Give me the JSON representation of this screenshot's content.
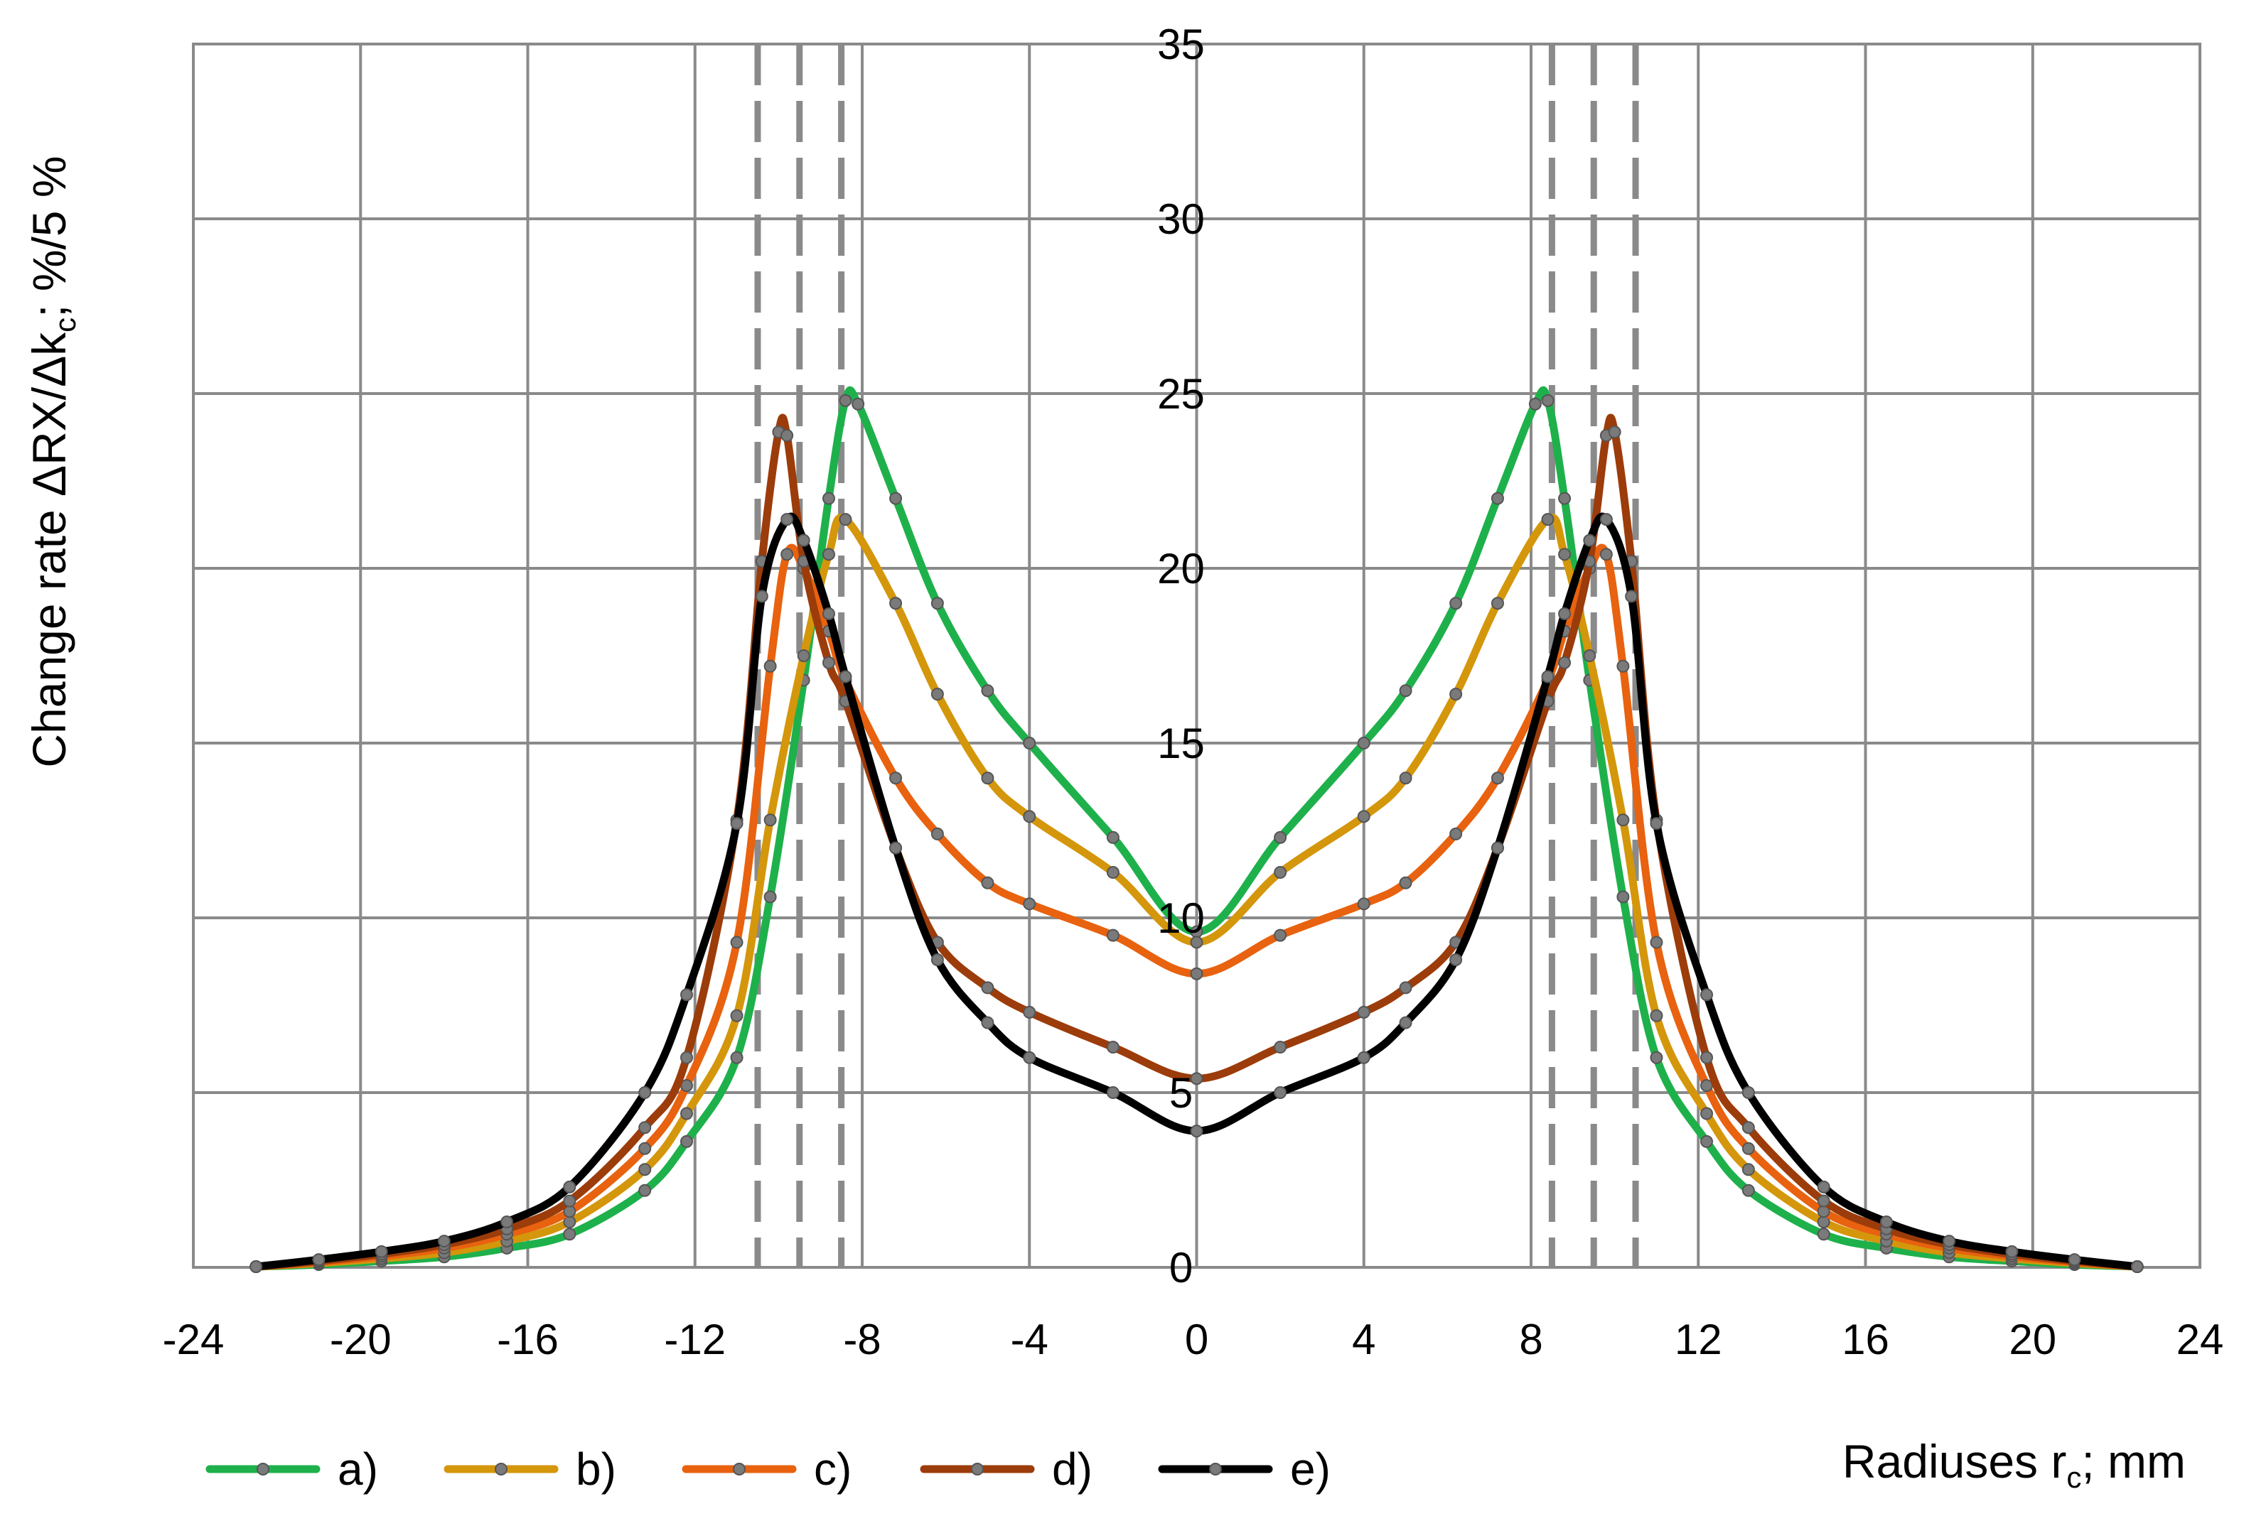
{
  "chart_data": {
    "type": "line",
    "xlabel": "Radiuses r",
    "xlabel_sub": "c",
    "xlabel_unit": ";  mm",
    "ylabel": "Change rate ΔRX/Δk",
    "ylabel_sub": "c",
    "ylabel_unit": ";  %/5 %",
    "xlim": [
      -24,
      24
    ],
    "ylim": [
      0,
      35
    ],
    "xticks": [
      -24,
      -20,
      -16,
      -12,
      -8,
      -4,
      0,
      4,
      8,
      12,
      16,
      20,
      24
    ],
    "yticks": [
      0,
      5,
      10,
      15,
      20,
      25,
      30,
      35
    ],
    "grid": true,
    "legend_position": "bottom",
    "reference_lines_x": [
      -10.5,
      -9.5,
      -8.5,
      8.5,
      9.5,
      10.5
    ],
    "series": [
      {
        "name": "a)",
        "color": "#1eb14b",
        "points": [
          [
            -22.5,
            0.02
          ],
          [
            -21,
            0.08
          ],
          [
            -19.5,
            0.18
          ],
          [
            -18,
            0.3
          ],
          [
            -16.5,
            0.55
          ],
          [
            -15,
            0.95
          ],
          [
            -13.2,
            2.2
          ],
          [
            -12.2,
            3.6
          ],
          [
            -11,
            6
          ],
          [
            -10.2,
            10.6
          ],
          [
            -9.4,
            16.8
          ],
          [
            -8.8,
            22
          ],
          [
            -8.4,
            24.8
          ],
          [
            -8.1,
            24.7
          ],
          [
            -7.2,
            22
          ],
          [
            -6.2,
            19
          ],
          [
            -5,
            16.5
          ],
          [
            -4,
            15
          ],
          [
            -2,
            12.3
          ],
          [
            0,
            9.6
          ],
          [
            2,
            12.3
          ],
          [
            4,
            15
          ],
          [
            5,
            16.5
          ],
          [
            6.2,
            19
          ],
          [
            7.2,
            22
          ],
          [
            8.1,
            24.7
          ],
          [
            8.4,
            24.8
          ],
          [
            8.8,
            22
          ],
          [
            9.4,
            16.8
          ],
          [
            10.2,
            10.6
          ],
          [
            11,
            6
          ],
          [
            12.2,
            3.6
          ],
          [
            13.2,
            2.2
          ],
          [
            15,
            0.95
          ],
          [
            16.5,
            0.55
          ],
          [
            18,
            0.3
          ],
          [
            19.5,
            0.18
          ],
          [
            21,
            0.08
          ],
          [
            22.5,
            0.02
          ]
        ]
      },
      {
        "name": "b)",
        "color": "#d4960b",
        "points": [
          [
            -22.5,
            0.02
          ],
          [
            -21,
            0.12
          ],
          [
            -19.5,
            0.25
          ],
          [
            -18,
            0.42
          ],
          [
            -16.5,
            0.75
          ],
          [
            -15,
            1.3
          ],
          [
            -13.2,
            2.8
          ],
          [
            -12.2,
            4.4
          ],
          [
            -11,
            7.2
          ],
          [
            -10.2,
            12.8
          ],
          [
            -9.4,
            17.5
          ],
          [
            -8.8,
            20.4
          ],
          [
            -8.4,
            21.4
          ],
          [
            -7.2,
            19
          ],
          [
            -6.2,
            16.4
          ],
          [
            -5,
            14
          ],
          [
            -4,
            12.9
          ],
          [
            -2,
            11.3
          ],
          [
            0,
            9.3
          ],
          [
            2,
            11.3
          ],
          [
            4,
            12.9
          ],
          [
            5,
            14
          ],
          [
            6.2,
            16.4
          ],
          [
            7.2,
            19
          ],
          [
            8.4,
            21.4
          ],
          [
            8.8,
            20.4
          ],
          [
            9.4,
            17.5
          ],
          [
            10.2,
            12.8
          ],
          [
            11,
            7.2
          ],
          [
            12.2,
            4.4
          ],
          [
            13.2,
            2.8
          ],
          [
            15,
            1.3
          ],
          [
            16.5,
            0.75
          ],
          [
            18,
            0.42
          ],
          [
            19.5,
            0.25
          ],
          [
            21,
            0.12
          ],
          [
            22.5,
            0.02
          ]
        ]
      },
      {
        "name": "c)",
        "color": "#e8620f",
        "points": [
          [
            -22.5,
            0.02
          ],
          [
            -21,
            0.15
          ],
          [
            -19.5,
            0.32
          ],
          [
            -18,
            0.55
          ],
          [
            -16.5,
            0.95
          ],
          [
            -15,
            1.6
          ],
          [
            -13.2,
            3.4
          ],
          [
            -12.2,
            5.2
          ],
          [
            -11,
            9.3
          ],
          [
            -10.2,
            17.2
          ],
          [
            -9.8,
            20.4
          ],
          [
            -9.4,
            20
          ],
          [
            -8.8,
            18.2
          ],
          [
            -8.4,
            16.8
          ],
          [
            -7.2,
            14
          ],
          [
            -6.2,
            12.4
          ],
          [
            -5,
            11
          ],
          [
            -4,
            10.4
          ],
          [
            -2,
            9.5
          ],
          [
            0,
            8.4
          ],
          [
            2,
            9.5
          ],
          [
            4,
            10.4
          ],
          [
            5,
            11
          ],
          [
            6.2,
            12.4
          ],
          [
            7.2,
            14
          ],
          [
            8.4,
            16.8
          ],
          [
            8.8,
            18.2
          ],
          [
            9.4,
            20
          ],
          [
            9.8,
            20.4
          ],
          [
            10.2,
            17.2
          ],
          [
            11,
            9.3
          ],
          [
            12.2,
            5.2
          ],
          [
            13.2,
            3.4
          ],
          [
            15,
            1.6
          ],
          [
            16.5,
            0.95
          ],
          [
            18,
            0.55
          ],
          [
            19.5,
            0.32
          ],
          [
            21,
            0.15
          ],
          [
            22.5,
            0.02
          ]
        ]
      },
      {
        "name": "d)",
        "color": "#9c3c0a",
        "points": [
          [
            -22.5,
            0.02
          ],
          [
            -21,
            0.18
          ],
          [
            -19.5,
            0.38
          ],
          [
            -18,
            0.65
          ],
          [
            -16.5,
            1.1
          ],
          [
            -15,
            1.9
          ],
          [
            -13.2,
            4
          ],
          [
            -12.2,
            6
          ],
          [
            -11,
            12.8
          ],
          [
            -10.4,
            20.2
          ],
          [
            -10,
            23.9
          ],
          [
            -9.8,
            23.8
          ],
          [
            -9.4,
            20.2
          ],
          [
            -8.8,
            17.3
          ],
          [
            -8.4,
            16.2
          ],
          [
            -7.2,
            12
          ],
          [
            -6.2,
            9.3
          ],
          [
            -5,
            8
          ],
          [
            -4,
            7.3
          ],
          [
            -2,
            6.3
          ],
          [
            0,
            5.4
          ],
          [
            2,
            6.3
          ],
          [
            4,
            7.3
          ],
          [
            5,
            8
          ],
          [
            6.2,
            9.3
          ],
          [
            7.2,
            12
          ],
          [
            8.4,
            16.2
          ],
          [
            8.8,
            17.3
          ],
          [
            9.4,
            20.2
          ],
          [
            9.8,
            23.8
          ],
          [
            10,
            23.9
          ],
          [
            10.4,
            20.2
          ],
          [
            11,
            12.8
          ],
          [
            12.2,
            6
          ],
          [
            13.2,
            4
          ],
          [
            15,
            1.9
          ],
          [
            16.5,
            1.1
          ],
          [
            18,
            0.65
          ],
          [
            19.5,
            0.38
          ],
          [
            21,
            0.18
          ],
          [
            22.5,
            0.02
          ]
        ]
      },
      {
        "name": "e)",
        "color": "#000000",
        "points": [
          [
            -22.5,
            0.02
          ],
          [
            -21,
            0.22
          ],
          [
            -19.5,
            0.45
          ],
          [
            -18,
            0.75
          ],
          [
            -16.5,
            1.3
          ],
          [
            -15,
            2.3
          ],
          [
            -13.2,
            5
          ],
          [
            -12.2,
            7.8
          ],
          [
            -11,
            12.7
          ],
          [
            -10.4,
            19.2
          ],
          [
            -9.8,
            21.4
          ],
          [
            -9.4,
            20.8
          ],
          [
            -8.8,
            18.7
          ],
          [
            -8.4,
            16.9
          ],
          [
            -7.2,
            12
          ],
          [
            -6.2,
            8.8
          ],
          [
            -5,
            7
          ],
          [
            -4,
            6
          ],
          [
            -2,
            5
          ],
          [
            0,
            3.9
          ],
          [
            2,
            5
          ],
          [
            4,
            6
          ],
          [
            5,
            7
          ],
          [
            6.2,
            8.8
          ],
          [
            7.2,
            12
          ],
          [
            8.4,
            16.9
          ],
          [
            8.8,
            18.7
          ],
          [
            9.4,
            20.8
          ],
          [
            9.8,
            21.4
          ],
          [
            10.4,
            19.2
          ],
          [
            11,
            12.7
          ],
          [
            12.2,
            7.8
          ],
          [
            13.2,
            5
          ],
          [
            15,
            2.3
          ],
          [
            16.5,
            1.3
          ],
          [
            18,
            0.75
          ],
          [
            19.5,
            0.45
          ],
          [
            21,
            0.22
          ],
          [
            22.5,
            0.02
          ]
        ]
      }
    ]
  }
}
